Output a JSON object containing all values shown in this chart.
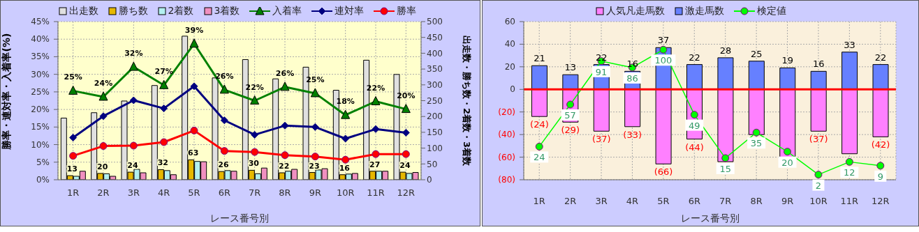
{
  "chart_data": [
    {
      "type": "bar",
      "categories": [
        "1R",
        "2R",
        "3R",
        "4R",
        "5R",
        "6R",
        "7R",
        "8R",
        "9R",
        "10R",
        "11R",
        "12R"
      ],
      "xlabel": "レース番号別",
      "ylabel": "勝率・連対率・入着率(%)",
      "y2label": "出走数・勝ち数・2着数・3着数",
      "ylim": [
        0,
        45
      ],
      "yticks": [
        {
          "value": 0,
          "label": "0%"
        },
        {
          "value": 5,
          "label": "5%"
        },
        {
          "value": 10,
          "label": "10%"
        },
        {
          "value": 15,
          "label": "15%"
        },
        {
          "value": 20,
          "label": "20%"
        },
        {
          "value": 25,
          "label": "25%"
        },
        {
          "value": 30,
          "label": "30%"
        },
        {
          "value": 35,
          "label": "35%"
        },
        {
          "value": 40,
          "label": "40%"
        },
        {
          "value": 45,
          "label": "45%"
        }
      ],
      "y2lim": [
        0,
        500
      ],
      "y2ticks": [
        0,
        50,
        100,
        150,
        200,
        250,
        300,
        350,
        400,
        450,
        500
      ],
      "grid": true,
      "legend": "top",
      "series": [
        {
          "name": "出走数",
          "axis": "y2",
          "color": "#e0e0e0",
          "values": [
            195,
            212,
            249,
            298,
            454,
            322,
            380,
            319,
            356,
            283,
            378,
            333
          ]
        },
        {
          "name": "勝ち数",
          "axis": "y2",
          "color": "#e6b800",
          "values": [
            13,
            20,
            24,
            32,
            63,
            26,
            30,
            22,
            23,
            16,
            27,
            24
          ],
          "value_labels": [
            "13",
            "20",
            "24",
            "32",
            "63",
            "26",
            "30",
            "22",
            "23",
            "16",
            "27",
            "24"
          ]
        },
        {
          "name": "2着数",
          "axis": "y2",
          "color": "#b3f0f0",
          "values": [
            11,
            19,
            33,
            29,
            58,
            29,
            19,
            27,
            31,
            18,
            27,
            20
          ]
        },
        {
          "name": "3着数",
          "axis": "y2",
          "color": "#f090c0",
          "values": [
            27,
            11,
            22,
            16,
            57,
            27,
            37,
            33,
            35,
            20,
            27,
            23
          ]
        },
        {
          "name": "入着率",
          "type": "line",
          "color": "#008000",
          "marker": "triangle",
          "values": [
            25.3,
            23.6,
            32.1,
            26.9,
            38.7,
            25.6,
            22.5,
            26.4,
            24.6,
            18.4,
            22.3,
            20.1
          ],
          "value_labels": [
            "25%",
            "24%",
            "32%",
            "27%",
            "39%",
            "26%",
            "22%",
            "26%",
            "25%",
            "18%",
            "22%",
            "20%"
          ]
        },
        {
          "name": "連対率",
          "type": "line",
          "color": "#000080",
          "marker": "diamond",
          "values": [
            12.0,
            18.1,
            22.6,
            20.3,
            26.6,
            16.9,
            12.8,
            15.4,
            15.0,
            11.7,
            14.4,
            13.4
          ]
        },
        {
          "name": "勝率",
          "type": "line",
          "color": "#ff0000",
          "marker": "circle",
          "values": [
            6.8,
            9.6,
            9.7,
            10.7,
            14.0,
            8.2,
            7.9,
            7.0,
            6.6,
            5.7,
            7.3,
            7.3
          ]
        }
      ]
    },
    {
      "type": "bar",
      "stacked": true,
      "categories": [
        "1R",
        "2R",
        "3R",
        "4R",
        "5R",
        "6R",
        "7R",
        "8R",
        "9R",
        "10R",
        "11R",
        "12R"
      ],
      "xlabel": "レース番号別",
      "ylim": [
        -80,
        60
      ],
      "yticks": [
        {
          "value": -80,
          "label": "(80)"
        },
        {
          "value": -60,
          "label": "(60)"
        },
        {
          "value": -40,
          "label": "(40)"
        },
        {
          "value": -20,
          "label": "(20)"
        },
        0,
        20,
        40,
        60
      ],
      "y2lim": [
        -2,
        122
      ],
      "grid": true,
      "legend": "top",
      "ref_lines": [
        {
          "axis": "y",
          "value": 0,
          "color": "#ff0000"
        }
      ],
      "series": [
        {
          "name": "人気凡走馬数",
          "color": "#ff80ff",
          "values": [
            -24,
            -29,
            -37,
            -33,
            -66,
            -44,
            -64,
            -40,
            -60,
            -37,
            -57,
            -42
          ],
          "value_labels": [
            "(24)",
            "(29)",
            "(37)",
            "(33)",
            "(66)",
            "(44)",
            null,
            null,
            null,
            "(37)",
            null,
            "(42)"
          ]
        },
        {
          "name": "激走馬数",
          "color": "#6680ff",
          "values": [
            21,
            13,
            22,
            16,
            37,
            22,
            28,
            25,
            19,
            16,
            33,
            22
          ],
          "value_labels": [
            "21",
            "13",
            "22",
            "16",
            "37",
            "22",
            "28",
            "25",
            "19",
            "16",
            "33",
            "22"
          ]
        },
        {
          "name": "検定値",
          "type": "line",
          "axis": "y2",
          "color": "#00ff00",
          "marker": "circle",
          "values": [
            24,
            57,
            91,
            86,
            100,
            49,
            15,
            35,
            20,
            2,
            12,
            9
          ],
          "value_labels": [
            "24",
            "57",
            "91",
            "86",
            "100",
            "49",
            "15",
            "35",
            "20",
            "2",
            "12",
            "9"
          ]
        }
      ]
    }
  ]
}
